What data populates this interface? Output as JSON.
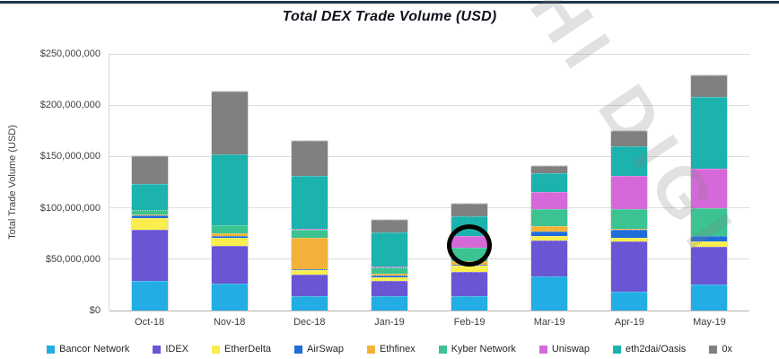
{
  "page": {
    "watermark": "HI DIGI",
    "top_rule_color": "#1e3448",
    "background_color": "#ffffff"
  },
  "chart_data": {
    "type": "bar",
    "stacked": true,
    "title": "Total DEX Trade Volume (USD)",
    "xlabel": "",
    "ylabel": "Total Trade Volume (USD)",
    "ylim": [
      0,
      250000000
    ],
    "grid": true,
    "legend_position": "bottom",
    "yticks": [
      {
        "value": 0,
        "label": "$0"
      },
      {
        "value": 50000000,
        "label": "$50,000,000"
      },
      {
        "value": 100000000,
        "label": "$100,000,000"
      },
      {
        "value": 150000000,
        "label": "$150,000,000"
      },
      {
        "value": 200000000,
        "label": "$200,000,000"
      },
      {
        "value": 250000000,
        "label": "$250,000,000"
      }
    ],
    "categories": [
      "Oct-18",
      "Nov-18",
      "Dec-18",
      "Jan-19",
      "Feb-19",
      "Mar-19",
      "Apr-19",
      "May-19"
    ],
    "series": [
      {
        "name": "Bancor Network",
        "color": "#22ade4",
        "values": [
          29000000,
          26000000,
          14000000,
          14000000,
          14000000,
          33000000,
          18000000,
          25000000
        ]
      },
      {
        "name": "IDEX",
        "color": "#6a55d3",
        "values": [
          50000000,
          37000000,
          21000000,
          15000000,
          24000000,
          35000000,
          49000000,
          37000000
        ]
      },
      {
        "name": "EtherDelta",
        "color": "#f9ee4e",
        "values": [
          11000000,
          8000000,
          4000000,
          3000000,
          6000000,
          5000000,
          4000000,
          5000000
        ]
      },
      {
        "name": "AirSwap",
        "color": "#1f6dd9",
        "values": [
          3000000,
          2000000,
          1000000,
          2000000,
          1000000,
          4000000,
          8000000,
          6000000
        ]
      },
      {
        "name": "Ethfinex",
        "color": "#f2b23a",
        "values": [
          1000000,
          2000000,
          31000000,
          2000000,
          3000000,
          5000000,
          1000000,
          0
        ]
      },
      {
        "name": "Kyber Network",
        "color": "#3bc492",
        "values": [
          4000000,
          8000000,
          8000000,
          6000000,
          13000000,
          17000000,
          19000000,
          27000000
        ]
      },
      {
        "name": "Uniswap",
        "color": "#d669da",
        "values": [
          0,
          0,
          1000000,
          1000000,
          12000000,
          16000000,
          32000000,
          38000000
        ]
      },
      {
        "name": "eth2dai/Oasis",
        "color": "#1cb2ad",
        "values": [
          25000000,
          69000000,
          51000000,
          33000000,
          19000000,
          19000000,
          29000000,
          70000000
        ]
      },
      {
        "name": "0x",
        "color": "#808080",
        "values": [
          27000000,
          61000000,
          34000000,
          12000000,
          12000000,
          7000000,
          15000000,
          21000000
        ]
      }
    ],
    "totals": [
      150000000,
      213000000,
      165000000,
      88000000,
      104000000,
      141000000,
      175000000,
      229000000
    ],
    "annotation": {
      "shape": "circle",
      "color": "#000000",
      "target_category": "Feb-19",
      "target_category_index": 4,
      "center_value": 63500000,
      "radius_value": 20500000,
      "description": "hand-drawn black circle highlighting the Uniswap and Kyber Network segments of the Feb-19 bar"
    }
  }
}
